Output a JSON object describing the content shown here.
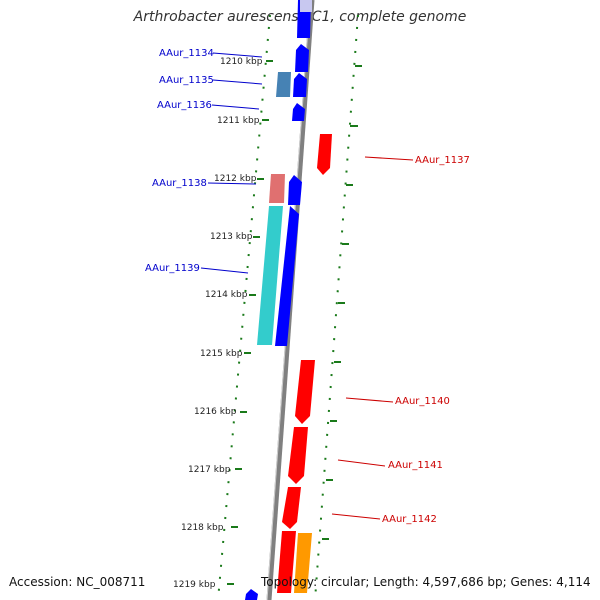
{
  "title": "Arthrobacter aurescens TC1, complete genome",
  "footer": {
    "accession": "Accession: NC_008711",
    "summary": "Topology: circular; Length: 4,597,686 bp; Genes: 4,114"
  },
  "colors": {
    "forward": "#0000ff",
    "reverse": "#ff0000",
    "teal": "#33cccc",
    "steel": "#4682b4",
    "salmon": "#e07070",
    "orange": "#ff9900",
    "backbone": "#808080",
    "ticks": "#1a7a1a"
  },
  "kbp_labels": [
    "1210 kbp",
    "1211 kbp",
    "1212 kbp",
    "1213 kbp",
    "1214 kbp",
    "1215 kbp",
    "1216 kbp",
    "1217 kbp",
    "1218 kbp",
    "1219 kbp"
  ],
  "genes": [
    {
      "name": "AAur_1134",
      "side": "left"
    },
    {
      "name": "AAur_1135",
      "side": "left"
    },
    {
      "name": "AAur_1136",
      "side": "left"
    },
    {
      "name": "AAur_1137",
      "side": "right"
    },
    {
      "name": "AAur_1138",
      "side": "left"
    },
    {
      "name": "AAur_1139",
      "side": "left"
    },
    {
      "name": "AAur_1140",
      "side": "right"
    },
    {
      "name": "AAur_1141",
      "side": "right"
    },
    {
      "name": "AAur_1142",
      "side": "right"
    }
  ]
}
